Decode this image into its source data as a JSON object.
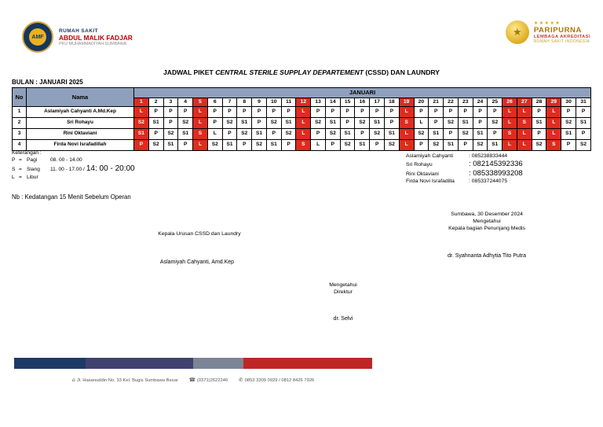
{
  "theme": {
    "red": "#df2b20",
    "header_blue": "#8fa0bc",
    "navy": "#17365d"
  },
  "page": {
    "month_label": "BULAN : JANUARI 2025",
    "title": {
      "prefix": "JADWAL PIKET ",
      "italic": "CENTRAL STERILE SUPPLAY DEPARTEMENT",
      "suffix": " (CSSD) DAN LAUNDRY"
    }
  },
  "header": {
    "left_logo": {
      "acronym": "AMF",
      "line1": "RUMAH SAKIT",
      "line2": "ABDUL MALIK FADJAR",
      "line3": "PKU MUHAMMADIYAH SUMBAWA"
    },
    "right_logo": {
      "medal_icon": "★",
      "stars": "★★★★★",
      "line1": "PARIPURNA",
      "line2": "LEMBAGA AKREDITASI",
      "line3": "RUMAH SAKIT INDONESIA"
    }
  },
  "schedule": {
    "col_no": "No",
    "col_name": "Nama",
    "month": "JANUARI",
    "days": [
      1,
      2,
      3,
      4,
      5,
      6,
      7,
      8,
      9,
      10,
      11,
      12,
      13,
      14,
      15,
      16,
      17,
      18,
      19,
      20,
      21,
      22,
      23,
      24,
      25,
      26,
      27,
      28,
      29,
      30,
      31
    ],
    "red_days": [
      1,
      5,
      12,
      19,
      26,
      27,
      29
    ],
    "rows": [
      {
        "no": "1",
        "name": "Aslamiyah Cahyanti A.Md.Kep",
        "shifts": [
          "L",
          "P",
          "P",
          "P",
          "L",
          "P",
          "P",
          "P",
          "P",
          "P",
          "P",
          "L",
          "P",
          "P",
          "P",
          "P",
          "P",
          "P",
          "L",
          "P",
          "P",
          "P",
          "P",
          "P",
          "P",
          "L",
          "L",
          "P",
          "L",
          "P",
          "P"
        ]
      },
      {
        "no": "2",
        "name": "Sri Rohayu",
        "shifts": [
          "S2",
          "S1",
          "P",
          "S2",
          "L",
          "P",
          "S2",
          "S1",
          "P",
          "S2",
          "S1",
          "L",
          "S2",
          "S1",
          "P",
          "S2",
          "S1",
          "P",
          "S",
          "L",
          "P",
          "S2",
          "S1",
          "P",
          "S2",
          "L",
          "S",
          "S1",
          "L",
          "S2",
          "S1"
        ]
      },
      {
        "no": "3",
        "name": "Rini Oktaviani",
        "shifts": [
          "S1",
          "P",
          "S2",
          "S1",
          "S",
          "L",
          "P",
          "S2",
          "S1",
          "P",
          "S2",
          "L",
          "P",
          "S2",
          "S1",
          "P",
          "S2",
          "S1",
          "L",
          "S2",
          "S1",
          "P",
          "S2",
          "S1",
          "P",
          "S",
          "L",
          "P",
          "L",
          "S1",
          "P"
        ]
      },
      {
        "no": "4",
        "name": "Firda Novi Israfadillah",
        "shifts": [
          "P",
          "S2",
          "S1",
          "P",
          "L",
          "S2",
          "S1",
          "P",
          "S2",
          "S1",
          "P",
          "S",
          "L",
          "P",
          "S2",
          "S1",
          "P",
          "S2",
          "L",
          "P",
          "S2",
          "S1",
          "P",
          "S2",
          "S1",
          "L",
          "L",
          "S2",
          "S",
          "P",
          "S2"
        ]
      }
    ]
  },
  "legend": {
    "heading": "Keterangan :",
    "items": [
      {
        "code": "P",
        "eq": "=",
        "label": "Pagi",
        "time": "08. 00 - 14.00",
        "time_big": ""
      },
      {
        "code": "S",
        "eq": "=",
        "label": "Siang",
        "time": "11. 00 - 17.00 /",
        "time_big": "14: 00 - 20:00"
      },
      {
        "code": "L",
        "eq": "=",
        "label": "Libur",
        "time": "",
        "time_big": ""
      }
    ],
    "note": "Nb : Kedatangan 15 Menit Sebelum Operan"
  },
  "contacts": [
    {
      "name": "Aslamiyah Cahyanti",
      "sep": ":",
      "phone": "085238833444",
      "big": false
    },
    {
      "name": "Sri Rohayu",
      "sep": ":",
      "phone": "082145392336",
      "big": true
    },
    {
      "name": "Rini Oktaviani",
      "sep": ":",
      "phone": "085338993208",
      "big": true
    },
    {
      "name": "Firda Novi Israfadilla",
      "sep": ":",
      "phone": "085337244075",
      "big": false
    }
  ],
  "signatures": {
    "left": {
      "title": "Kepala Urusan CSSD dan Laundry",
      "name": "Aslamiyah Cahyanti, Amd.Kep"
    },
    "right": {
      "place_date": "Sumbawa, 30 Desember 2024",
      "line1": "Mengetahui",
      "line2": "Kepala bagian Penunjang Medis",
      "name": "dr. Syahnanta Adhytia Tito Putra"
    },
    "center": {
      "line1": "Mengetahui",
      "line2": "Direktur",
      "name": "dr. Selvi"
    }
  },
  "footer": {
    "bar_segments": [
      {
        "color": "#1d3a66",
        "width_pct": 20
      },
      {
        "color": "#41416f",
        "width_pct": 30
      },
      {
        "color": "#7b8595",
        "width_pct": 14
      },
      {
        "color": "#be2625",
        "width_pct": 36
      }
    ],
    "items": [
      {
        "icon": "⌂",
        "icon_name": "location-icon",
        "text": "Jl. Hasanuddin No. 33 Kel. Bugis Sumbawa Besar"
      },
      {
        "icon": "☎",
        "icon_name": "phone-icon",
        "text": "(0371)2622246"
      },
      {
        "icon": "✆",
        "icon_name": "whatsapp-icon",
        "text": "0853 3309 0929 / 0812 8426 7926"
      }
    ]
  }
}
